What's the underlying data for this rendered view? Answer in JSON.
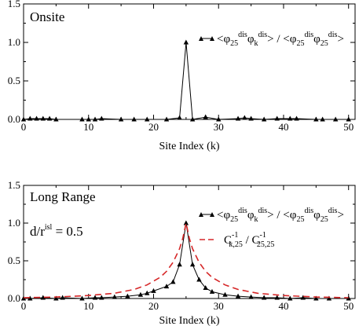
{
  "chart_data": [
    {
      "type": "line",
      "panel_label": "Onsite",
      "xlabel": "Site Index (k)",
      "ylabel": "",
      "xlim": [
        0,
        51
      ],
      "ylim": [
        0,
        1.5
      ],
      "xticks": [
        0,
        10,
        20,
        30,
        40,
        50
      ],
      "yticks": [
        0,
        0.5,
        1.0,
        1.5
      ],
      "ytick_labels": [
        "0.0",
        "0.5",
        "1.0",
        "1.5"
      ],
      "legend_position": "top-right",
      "series": [
        {
          "name": "<φ25disφkdis> / <φ25disφ25dis>",
          "color": "#000000",
          "marker": "triangle",
          "line": "solid",
          "x": [
            0,
            1,
            2,
            3,
            4,
            5,
            9,
            10,
            11,
            12,
            15,
            17,
            19,
            22,
            24,
            25,
            26,
            28,
            30,
            33,
            34,
            35,
            37,
            39,
            41,
            42,
            45,
            46,
            48,
            50
          ],
          "y": [
            0.0,
            0.01,
            0.01,
            0.01,
            0.01,
            0.0,
            0.0,
            0.0,
            0.0,
            0.01,
            0.0,
            0.0,
            0.0,
            0.0,
            0.02,
            1.0,
            0.0,
            0.03,
            0.0,
            0.01,
            0.02,
            0.01,
            0.0,
            0.01,
            0.01,
            0.01,
            0.0,
            0.0,
            0.0,
            0.0
          ]
        }
      ]
    },
    {
      "type": "line",
      "panel_label": "Long Range",
      "annotation": "d/r",
      "annotation_sup": "isl",
      "annotation_value": " = 0.5",
      "xlabel": "Site Index (k)",
      "ylabel": "",
      "xlim": [
        0,
        51
      ],
      "ylim": [
        0,
        1.5
      ],
      "xticks": [
        0,
        10,
        20,
        30,
        40,
        50
      ],
      "yticks": [
        0,
        0.5,
        1.0,
        1.5
      ],
      "ytick_labels": [
        "0.0",
        "0.5",
        "1.0",
        "1.5"
      ],
      "legend_position": "top-right",
      "series": [
        {
          "name": "<φ25disφkdis> / <φ25disφ25dis>",
          "color": "#000000",
          "marker": "triangle",
          "line": "solid",
          "x": [
            0,
            1,
            3,
            5,
            6,
            9,
            11,
            12,
            14,
            16,
            18,
            19,
            20,
            22,
            23,
            24,
            25,
            26,
            27,
            28,
            29,
            31,
            33,
            35,
            37,
            39,
            41,
            43,
            45,
            47,
            50
          ],
          "y": [
            0.0,
            0.0,
            0.01,
            0.0,
            0.01,
            0.0,
            0.01,
            0.01,
            0.02,
            0.03,
            0.05,
            0.07,
            0.1,
            0.16,
            0.22,
            0.45,
            1.0,
            0.45,
            0.25,
            0.14,
            0.09,
            0.05,
            0.03,
            0.02,
            0.01,
            0.01,
            0.0,
            0.01,
            0.0,
            0.0,
            0.0
          ]
        },
        {
          "name": "C-1k,25 / C-125,25",
          "color": "#d62728",
          "marker": "none",
          "line": "dashed",
          "x": [
            0,
            5,
            10,
            14,
            17,
            19,
            21,
            22,
            23,
            24,
            24.5,
            25,
            25.5,
            26,
            27,
            28,
            29,
            31,
            33,
            36,
            40,
            45,
            50
          ],
          "y": [
            0.01,
            0.02,
            0.04,
            0.07,
            0.12,
            0.18,
            0.28,
            0.36,
            0.48,
            0.66,
            0.8,
            1.0,
            0.8,
            0.66,
            0.48,
            0.36,
            0.28,
            0.18,
            0.12,
            0.07,
            0.04,
            0.02,
            0.01
          ]
        }
      ]
    }
  ],
  "legend_text": {
    "lt": "<",
    "phi": "φ",
    "sub25": "25",
    "sup_dis": "dis",
    "sub_k": "k",
    "slash": " / ",
    "gt": ">",
    "c": "C",
    "sup_minus1": "-1",
    "sub_k25": "k,25",
    "sub_2525": "25,25"
  }
}
